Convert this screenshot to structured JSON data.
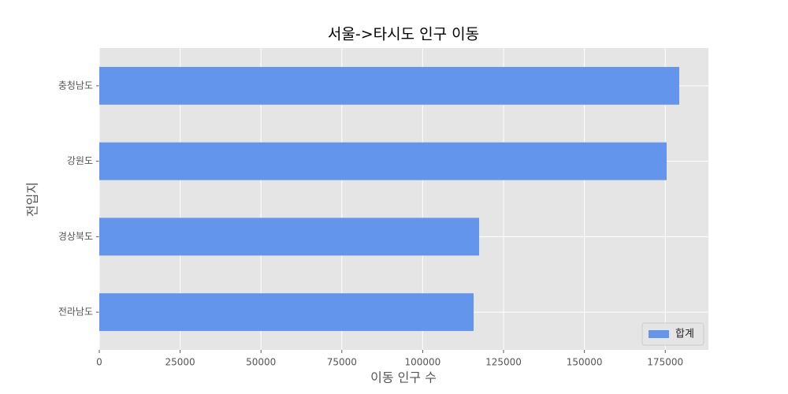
{
  "chart_data": {
    "type": "barh",
    "title": "서울->타시도 인구 이동",
    "x_label": "이동 인구 수",
    "y_label": "전입지",
    "categories": [
      "충청남도",
      "강원도",
      "경상북도",
      "전라남도"
    ],
    "series": [
      {
        "name": "합계",
        "color": "#6495ed",
        "values": [
          179330,
          175440,
          117450,
          115740
        ]
      }
    ],
    "xlim": [
      0,
      188350
    ],
    "xticks": [
      0,
      25000,
      50000,
      75000,
      100000,
      125000,
      150000,
      175000
    ],
    "grid": true,
    "legend": "lower right"
  }
}
